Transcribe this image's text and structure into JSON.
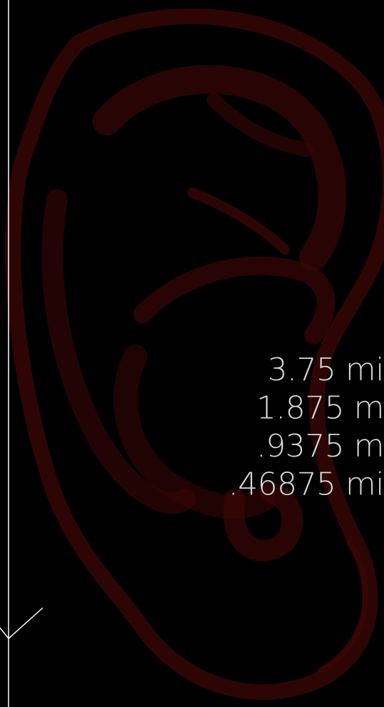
{
  "distances": [
    "3.75 mi",
    "1.875 m",
    ".9375 m",
    ".46875 mi"
  ]
}
